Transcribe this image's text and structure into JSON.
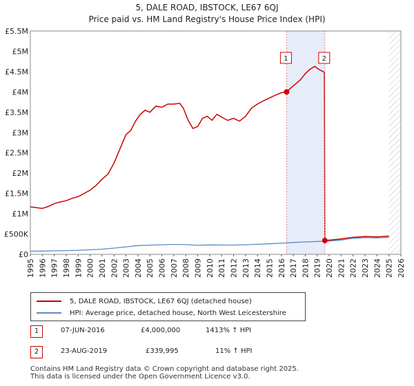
{
  "header": {
    "title": "5, DALE ROAD, IBSTOCK, LE67 6QJ",
    "subtitle": "Price paid vs. HM Land Registry's House Price Index (HPI)"
  },
  "chart_data": {
    "type": "line",
    "x_range": [
      1995,
      2026
    ],
    "ylim": [
      0,
      5500000
    ],
    "y_ticks": [
      {
        "value": 0,
        "label": "£0"
      },
      {
        "value": 500000,
        "label": "£500K"
      },
      {
        "value": 1000000,
        "label": "£1M"
      },
      {
        "value": 1500000,
        "label": "£1.5M"
      },
      {
        "value": 2000000,
        "label": "£2M"
      },
      {
        "value": 2500000,
        "label": "£2.5M"
      },
      {
        "value": 3000000,
        "label": "£3M"
      },
      {
        "value": 3500000,
        "label": "£3.5M"
      },
      {
        "value": 4000000,
        "label": "£4M"
      },
      {
        "value": 4500000,
        "label": "£4.5M"
      },
      {
        "value": 5000000,
        "label": "£5M"
      },
      {
        "value": 5500000,
        "label": "£5.5M"
      }
    ],
    "x_ticks": [
      "1995",
      "1996",
      "1997",
      "1998",
      "1999",
      "2000",
      "2001",
      "2002",
      "2003",
      "2004",
      "2005",
      "2006",
      "2007",
      "2008",
      "2009",
      "2010",
      "2011",
      "2012",
      "2013",
      "2014",
      "2015",
      "2016",
      "2017",
      "2018",
      "2019",
      "2020",
      "2021",
      "2022",
      "2023",
      "2024",
      "2025",
      "2026"
    ],
    "grid": true,
    "hatch_after": 2025.0,
    "shaded_span": [
      2016.44,
      2019.64
    ],
    "series": [
      {
        "name": "5, DALE ROAD, IBSTOCK, LE67 6QJ (detached house)",
        "color": "#cc0000",
        "points": [
          [
            1995.0,
            1170000
          ],
          [
            1995.5,
            1150000
          ],
          [
            1996.0,
            1130000
          ],
          [
            1996.5,
            1180000
          ],
          [
            1997.0,
            1250000
          ],
          [
            1997.5,
            1290000
          ],
          [
            1998.0,
            1320000
          ],
          [
            1998.5,
            1380000
          ],
          [
            1999.0,
            1420000
          ],
          [
            1999.5,
            1500000
          ],
          [
            2000.0,
            1580000
          ],
          [
            2000.5,
            1700000
          ],
          [
            2001.0,
            1850000
          ],
          [
            2001.5,
            1980000
          ],
          [
            2002.0,
            2250000
          ],
          [
            2002.5,
            2600000
          ],
          [
            2003.0,
            2950000
          ],
          [
            2003.4,
            3050000
          ],
          [
            2003.8,
            3280000
          ],
          [
            2004.2,
            3450000
          ],
          [
            2004.6,
            3550000
          ],
          [
            2005.0,
            3500000
          ],
          [
            2005.5,
            3650000
          ],
          [
            2006.0,
            3620000
          ],
          [
            2006.5,
            3700000
          ],
          [
            2007.0,
            3700000
          ],
          [
            2007.5,
            3720000
          ],
          [
            2007.8,
            3600000
          ],
          [
            2008.2,
            3300000
          ],
          [
            2008.6,
            3100000
          ],
          [
            2009.0,
            3150000
          ],
          [
            2009.4,
            3350000
          ],
          [
            2009.8,
            3400000
          ],
          [
            2010.2,
            3300000
          ],
          [
            2010.6,
            3450000
          ],
          [
            2011.0,
            3380000
          ],
          [
            2011.5,
            3300000
          ],
          [
            2012.0,
            3350000
          ],
          [
            2012.5,
            3280000
          ],
          [
            2013.0,
            3400000
          ],
          [
            2013.5,
            3600000
          ],
          [
            2014.0,
            3700000
          ],
          [
            2014.5,
            3780000
          ],
          [
            2015.0,
            3850000
          ],
          [
            2015.5,
            3920000
          ],
          [
            2016.0,
            3980000
          ],
          [
            2016.44,
            4000000
          ],
          [
            2016.8,
            4100000
          ],
          [
            2017.2,
            4200000
          ],
          [
            2017.6,
            4300000
          ],
          [
            2018.0,
            4450000
          ],
          [
            2018.4,
            4560000
          ],
          [
            2018.8,
            4630000
          ],
          [
            2019.1,
            4560000
          ],
          [
            2019.5,
            4500000
          ],
          [
            2019.6,
            4480000
          ],
          [
            2019.64,
            339995
          ],
          [
            2020.0,
            350000
          ],
          [
            2020.5,
            365000
          ],
          [
            2021.0,
            380000
          ],
          [
            2021.5,
            400000
          ],
          [
            2022.0,
            420000
          ],
          [
            2022.5,
            430000
          ],
          [
            2023.0,
            440000
          ],
          [
            2023.5,
            435000
          ],
          [
            2024.0,
            430000
          ],
          [
            2024.5,
            440000
          ],
          [
            2025.0,
            450000
          ]
        ]
      },
      {
        "name": "HPI: Average price, detached house, North West Leicestershire",
        "color": "#5a8ac6",
        "points": [
          [
            1995.0,
            78000
          ],
          [
            1996.0,
            80000
          ],
          [
            1997.0,
            86000
          ],
          [
            1998.0,
            92000
          ],
          [
            1999.0,
            100000
          ],
          [
            2000.0,
            112000
          ],
          [
            2001.0,
            128000
          ],
          [
            2002.0,
            152000
          ],
          [
            2003.0,
            185000
          ],
          [
            2004.0,
            215000
          ],
          [
            2005.0,
            228000
          ],
          [
            2006.0,
            236000
          ],
          [
            2007.0,
            245000
          ],
          [
            2008.0,
            240000
          ],
          [
            2009.0,
            222000
          ],
          [
            2010.0,
            232000
          ],
          [
            2011.0,
            230000
          ],
          [
            2012.0,
            230000
          ],
          [
            2013.0,
            236000
          ],
          [
            2014.0,
            248000
          ],
          [
            2015.0,
            260000
          ],
          [
            2016.0,
            275000
          ],
          [
            2016.44,
            282000
          ],
          [
            2017.0,
            292000
          ],
          [
            2018.0,
            305000
          ],
          [
            2019.0,
            318000
          ],
          [
            2019.64,
            322000
          ],
          [
            2020.0,
            328000
          ],
          [
            2021.0,
            352000
          ],
          [
            2022.0,
            395000
          ],
          [
            2023.0,
            410000
          ],
          [
            2024.0,
            405000
          ],
          [
            2025.0,
            418000
          ]
        ]
      }
    ],
    "annotations": [
      {
        "label": "1",
        "x": 2016.44,
        "y": 4000000
      },
      {
        "label": "2",
        "x": 2019.64,
        "y": 339995
      }
    ]
  },
  "legend": {
    "items": [
      {
        "label": "5, DALE ROAD, IBSTOCK, LE67 6QJ (detached house)",
        "color": "#cc0000"
      },
      {
        "label": "HPI: Average price, detached house, North West Leicestershire",
        "color": "#5a8ac6"
      }
    ]
  },
  "sales": [
    {
      "num": "1",
      "date": "07-JUN-2016",
      "price": "£4,000,000",
      "hpi": "1413% ↑ HPI"
    },
    {
      "num": "2",
      "date": "23-AUG-2019",
      "price": "£339,995",
      "hpi": "11% ↑ HPI"
    }
  ],
  "footer": {
    "line1": "Contains HM Land Registry data © Crown copyright and database right 2025.",
    "line2": "This data is licensed under the Open Government Licence v3.0."
  }
}
